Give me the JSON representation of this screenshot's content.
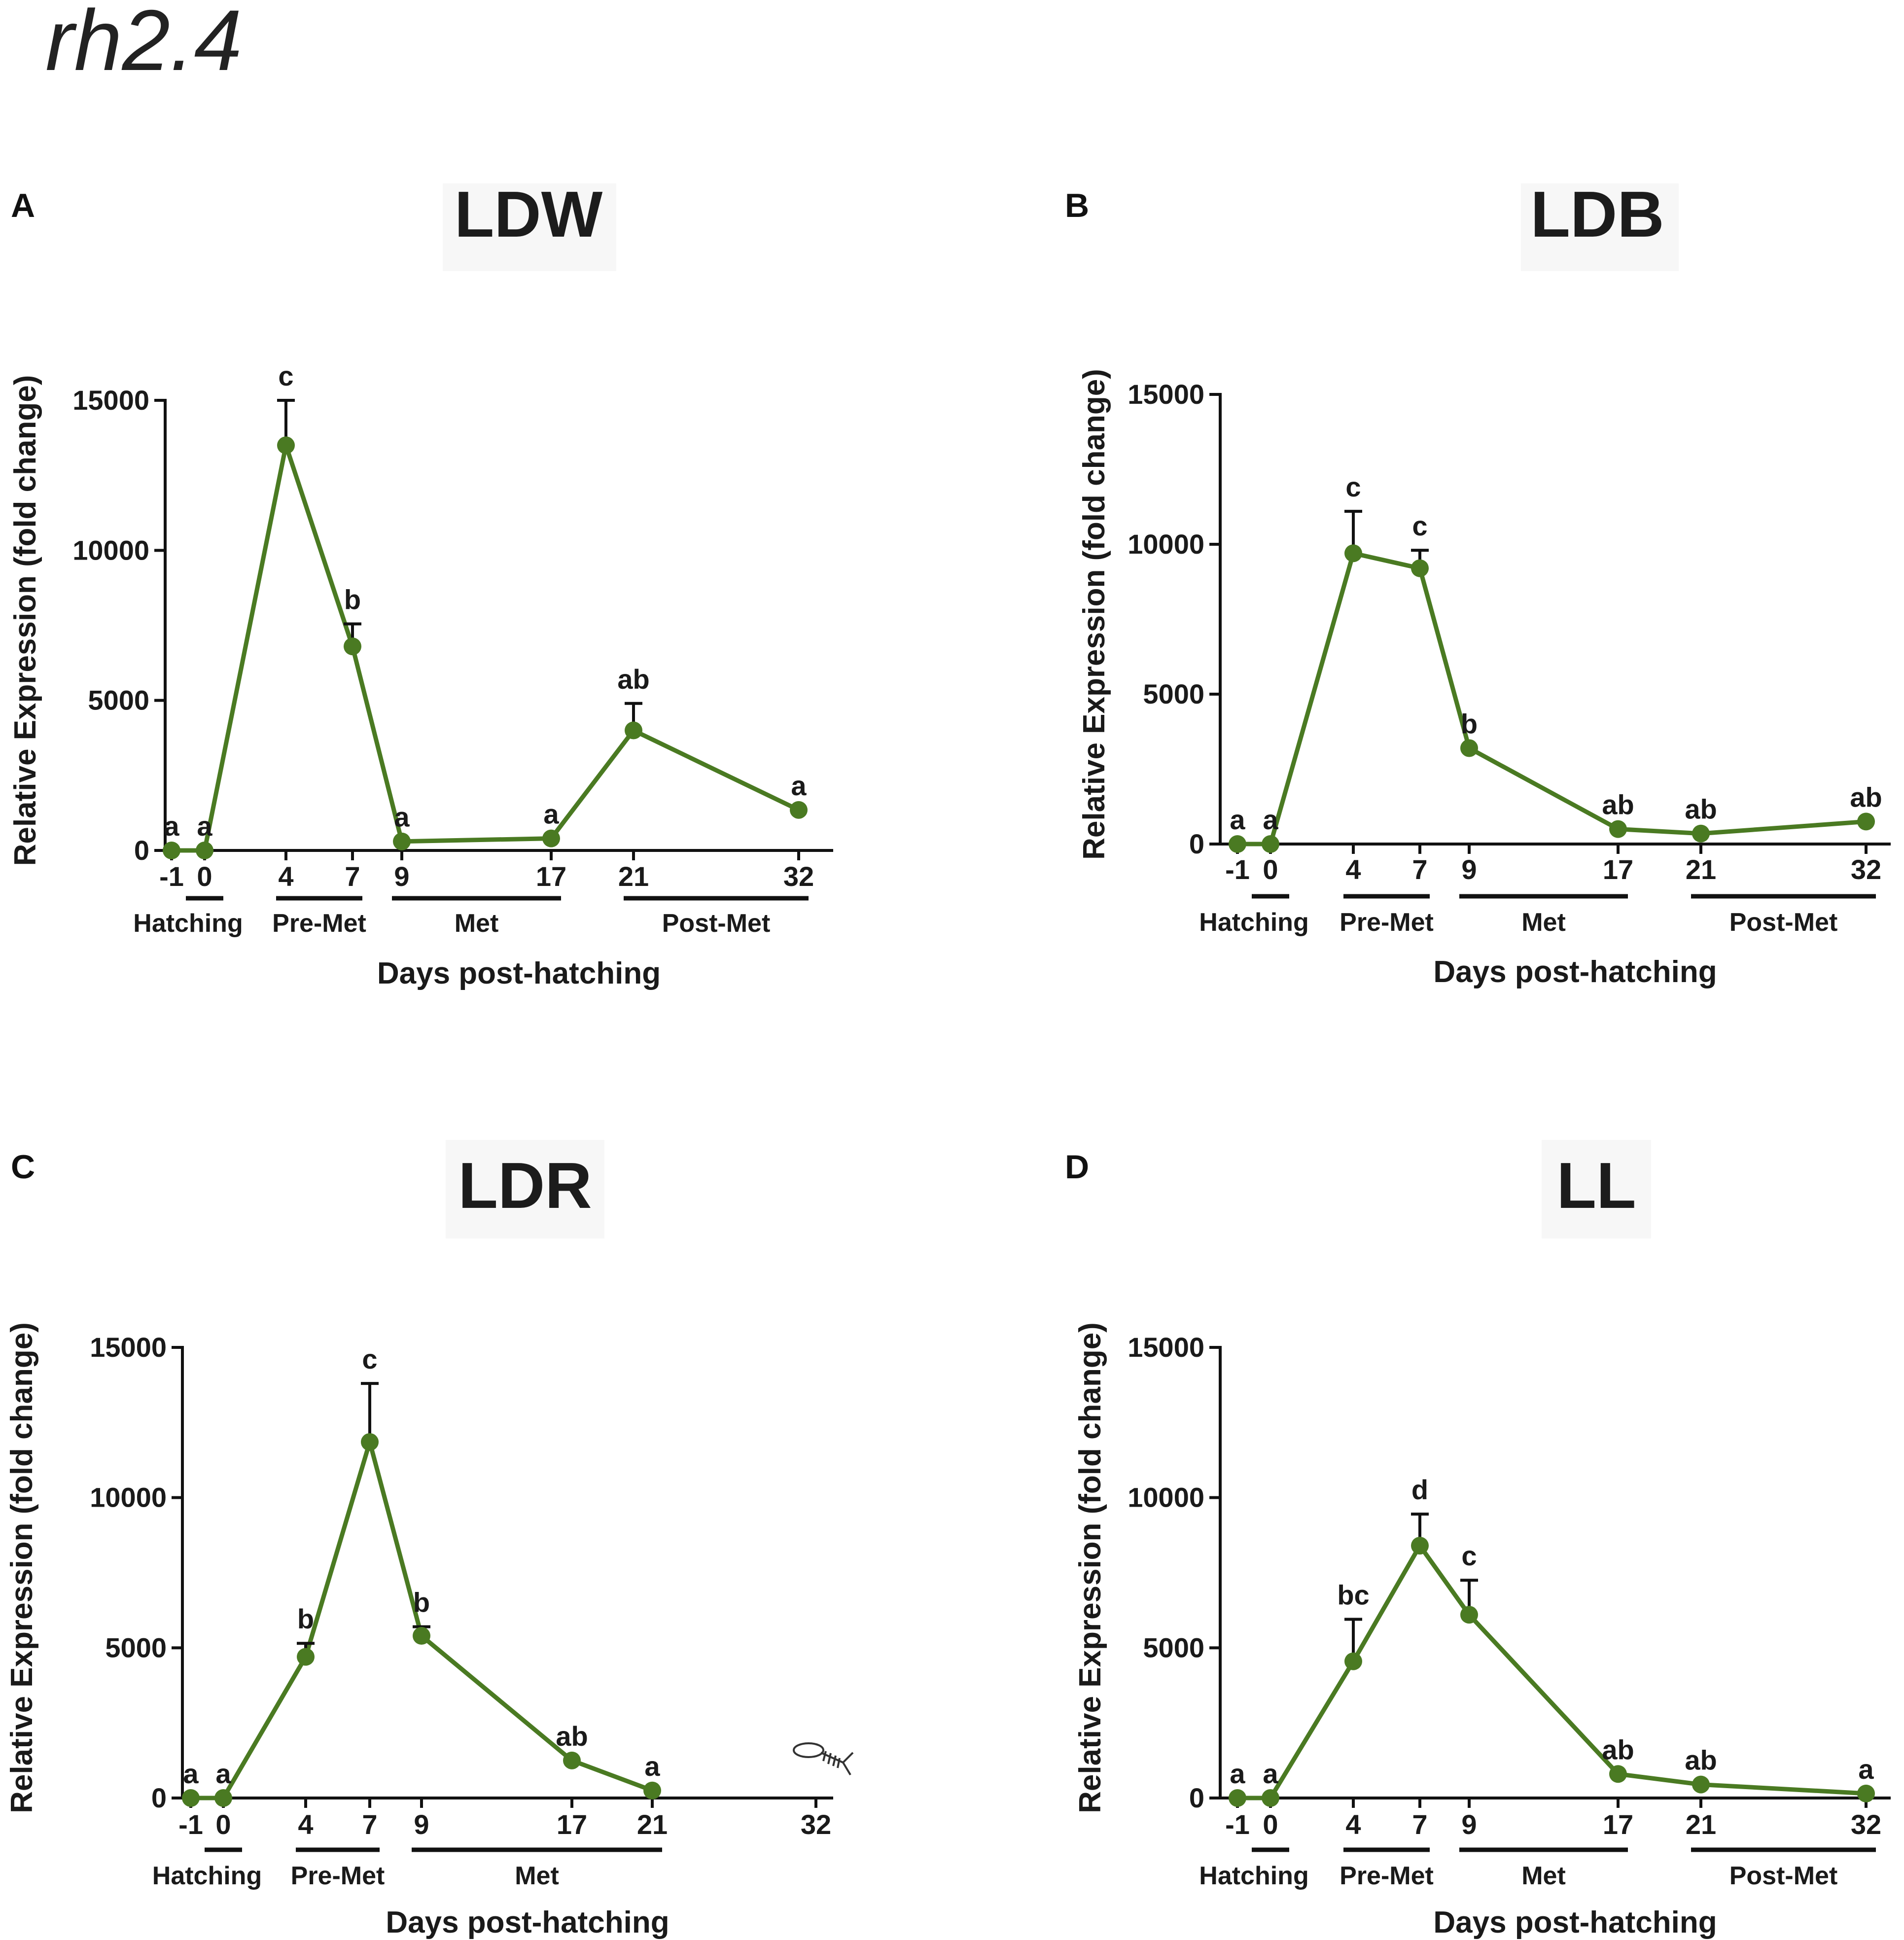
{
  "figure_title": "rh2.4",
  "chart_data": [
    {
      "id": "A",
      "panel": "A",
      "title": "LDW",
      "type": "line",
      "xlabel": "Days post-hatching",
      "ylabel": "Relative Expression (fold change)",
      "ylim": [
        0,
        15000
      ],
      "yticks": [
        0,
        5000,
        10000,
        15000
      ],
      "x": [
        "-1",
        "0",
        "4",
        "7",
        "9",
        "17",
        "21",
        "32"
      ],
      "x_tick_labels": [
        "-1",
        "0",
        "4",
        "7",
        "9",
        "17",
        "21",
        "32"
      ],
      "series": [
        {
          "name": "rh2.4",
          "color": "#4a7a22",
          "values": [
            0,
            0,
            13500,
            6800,
            300,
            400,
            4000,
            1350
          ],
          "error": [
            0,
            0,
            1500,
            750,
            0,
            0,
            900,
            0
          ],
          "labels": [
            "a",
            "a",
            "c",
            "b",
            "a",
            "a",
            "ab",
            "a"
          ]
        }
      ],
      "stages": [
        {
          "name": "Hatching",
          "from": "-1",
          "to": "0",
          "bar_from": "0",
          "bar_to": "0"
        },
        {
          "name": "Pre-Met",
          "from": "4",
          "to": "7",
          "bar_from": "4",
          "bar_to": "7"
        },
        {
          "name": "Met",
          "from": "9",
          "to": "17",
          "bar_from": "9",
          "bar_to": "17"
        },
        {
          "name": "Post-Met",
          "from": "21",
          "to": "32",
          "bar_from": "21",
          "bar_to": "32"
        }
      ]
    },
    {
      "id": "B",
      "panel": "B",
      "title": "LDB",
      "type": "line",
      "xlabel": "Days post-hatching",
      "ylabel": "Relative Expression (fold change)",
      "ylim": [
        0,
        15000
      ],
      "yticks": [
        0,
        5000,
        10000,
        15000
      ],
      "x": [
        "-1",
        "0",
        "4",
        "7",
        "9",
        "17",
        "21",
        "32"
      ],
      "x_tick_labels": [
        "-1",
        "0",
        "4",
        "7",
        "9",
        "17",
        "21",
        "32"
      ],
      "series": [
        {
          "name": "rh2.4",
          "color": "#4a7a22",
          "values": [
            0,
            0,
            9700,
            9200,
            3200,
            500,
            350,
            750
          ],
          "error": [
            0,
            0,
            1400,
            600,
            0,
            0,
            0,
            0
          ],
          "labels": [
            "a",
            "a",
            "c",
            "c",
            "b",
            "ab",
            "ab",
            "ab"
          ]
        }
      ],
      "stages": [
        {
          "name": "Hatching",
          "from": "-1",
          "to": "0",
          "bar_from": "0",
          "bar_to": "0"
        },
        {
          "name": "Pre-Met",
          "from": "4",
          "to": "7",
          "bar_from": "4",
          "bar_to": "7"
        },
        {
          "name": "Met",
          "from": "9",
          "to": "17",
          "bar_from": "9",
          "bar_to": "17"
        },
        {
          "name": "Post-Met",
          "from": "21",
          "to": "32",
          "bar_from": "21",
          "bar_to": "32"
        }
      ]
    },
    {
      "id": "C",
      "panel": "C",
      "title": "LDR",
      "type": "line",
      "xlabel": "Days post-hatching",
      "ylabel": "Relative Expression (fold change)",
      "ylim": [
        0,
        15000
      ],
      "yticks": [
        0,
        5000,
        10000,
        15000
      ],
      "x": [
        "-1",
        "0",
        "4",
        "7",
        "9",
        "17",
        "21",
        "32"
      ],
      "x_tick_labels": [
        "-1",
        "0",
        "4",
        "7",
        "9",
        "17",
        "21",
        "32"
      ],
      "series": [
        {
          "name": "rh2.4",
          "color": "#4a7a22",
          "values": [
            0,
            0,
            4700,
            11850,
            5400,
            1250,
            250,
            null
          ],
          "error": [
            0,
            0,
            450,
            1950,
            300,
            0,
            0,
            0
          ],
          "labels": [
            "a",
            "a",
            "b",
            "c",
            "b",
            "ab",
            "a",
            ""
          ]
        }
      ],
      "stages": [
        {
          "name": "Hatching",
          "from": "-1",
          "to": "0",
          "bar_from": "0",
          "bar_to": "0"
        },
        {
          "name": "Pre-Met",
          "from": "4",
          "to": "7",
          "bar_from": "4",
          "bar_to": "7"
        },
        {
          "name": "Met",
          "from": "9",
          "to": "21",
          "bar_from": "9",
          "bar_to": "21"
        }
      ],
      "has_fish_icon": true
    },
    {
      "id": "D",
      "panel": "D",
      "title": "LL",
      "type": "line",
      "xlabel": "Days post-hatching",
      "ylabel": "Relative Expression (fold change)",
      "ylim": [
        0,
        15000
      ],
      "yticks": [
        0,
        5000,
        10000,
        15000
      ],
      "x": [
        "-1",
        "0",
        "4",
        "7",
        "9",
        "17",
        "21",
        "32"
      ],
      "x_tick_labels": [
        "-1",
        "0",
        "4",
        "7",
        "9",
        "17",
        "21",
        "32"
      ],
      "series": [
        {
          "name": "rh2.4",
          "color": "#4a7a22",
          "values": [
            0,
            0,
            4550,
            8400,
            6100,
            800,
            450,
            150
          ],
          "error": [
            0,
            0,
            1400,
            1050,
            1150,
            0,
            0,
            0
          ],
          "labels": [
            "a",
            "a",
            "bc",
            "d",
            "c",
            "ab",
            "ab",
            "a"
          ]
        }
      ],
      "stages": [
        {
          "name": "Hatching",
          "from": "-1",
          "to": "0",
          "bar_from": "0",
          "bar_to": "0"
        },
        {
          "name": "Pre-Met",
          "from": "4",
          "to": "7",
          "bar_from": "4",
          "bar_to": "7"
        },
        {
          "name": "Met",
          "from": "9",
          "to": "17",
          "bar_from": "9",
          "bar_to": "17"
        },
        {
          "name": "Post-Met",
          "from": "21",
          "to": "32",
          "bar_from": "21",
          "bar_to": "32"
        }
      ]
    }
  ]
}
